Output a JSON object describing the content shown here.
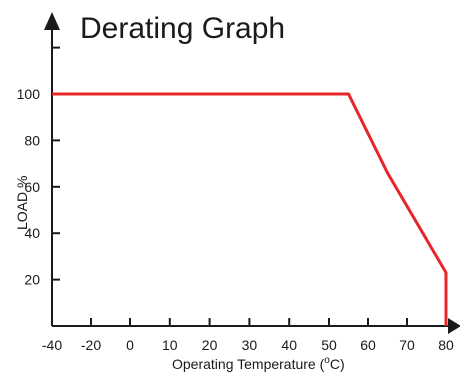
{
  "chart_data": {
    "type": "line",
    "title": "Derating Graph",
    "xlabel": "Operating Temperature (",
    "xlabel_unit_sup": "o",
    "xlabel_unit_tail": "C)",
    "ylabel": "LOAD %",
    "x_ticks": [
      -40,
      -20,
      0,
      10,
      20,
      30,
      40,
      50,
      60,
      70,
      80
    ],
    "y_ticks": [
      20,
      40,
      60,
      80,
      100
    ],
    "xlim": [
      -40,
      82
    ],
    "ylim": [
      0,
      122
    ],
    "series": [
      {
        "x": [
          -40,
          55,
          65,
          80,
          80
        ],
        "y": [
          100,
          100,
          66,
          23,
          0
        ]
      }
    ],
    "line_color": "#e8262a",
    "axis_color": "#1a1a1a"
  }
}
